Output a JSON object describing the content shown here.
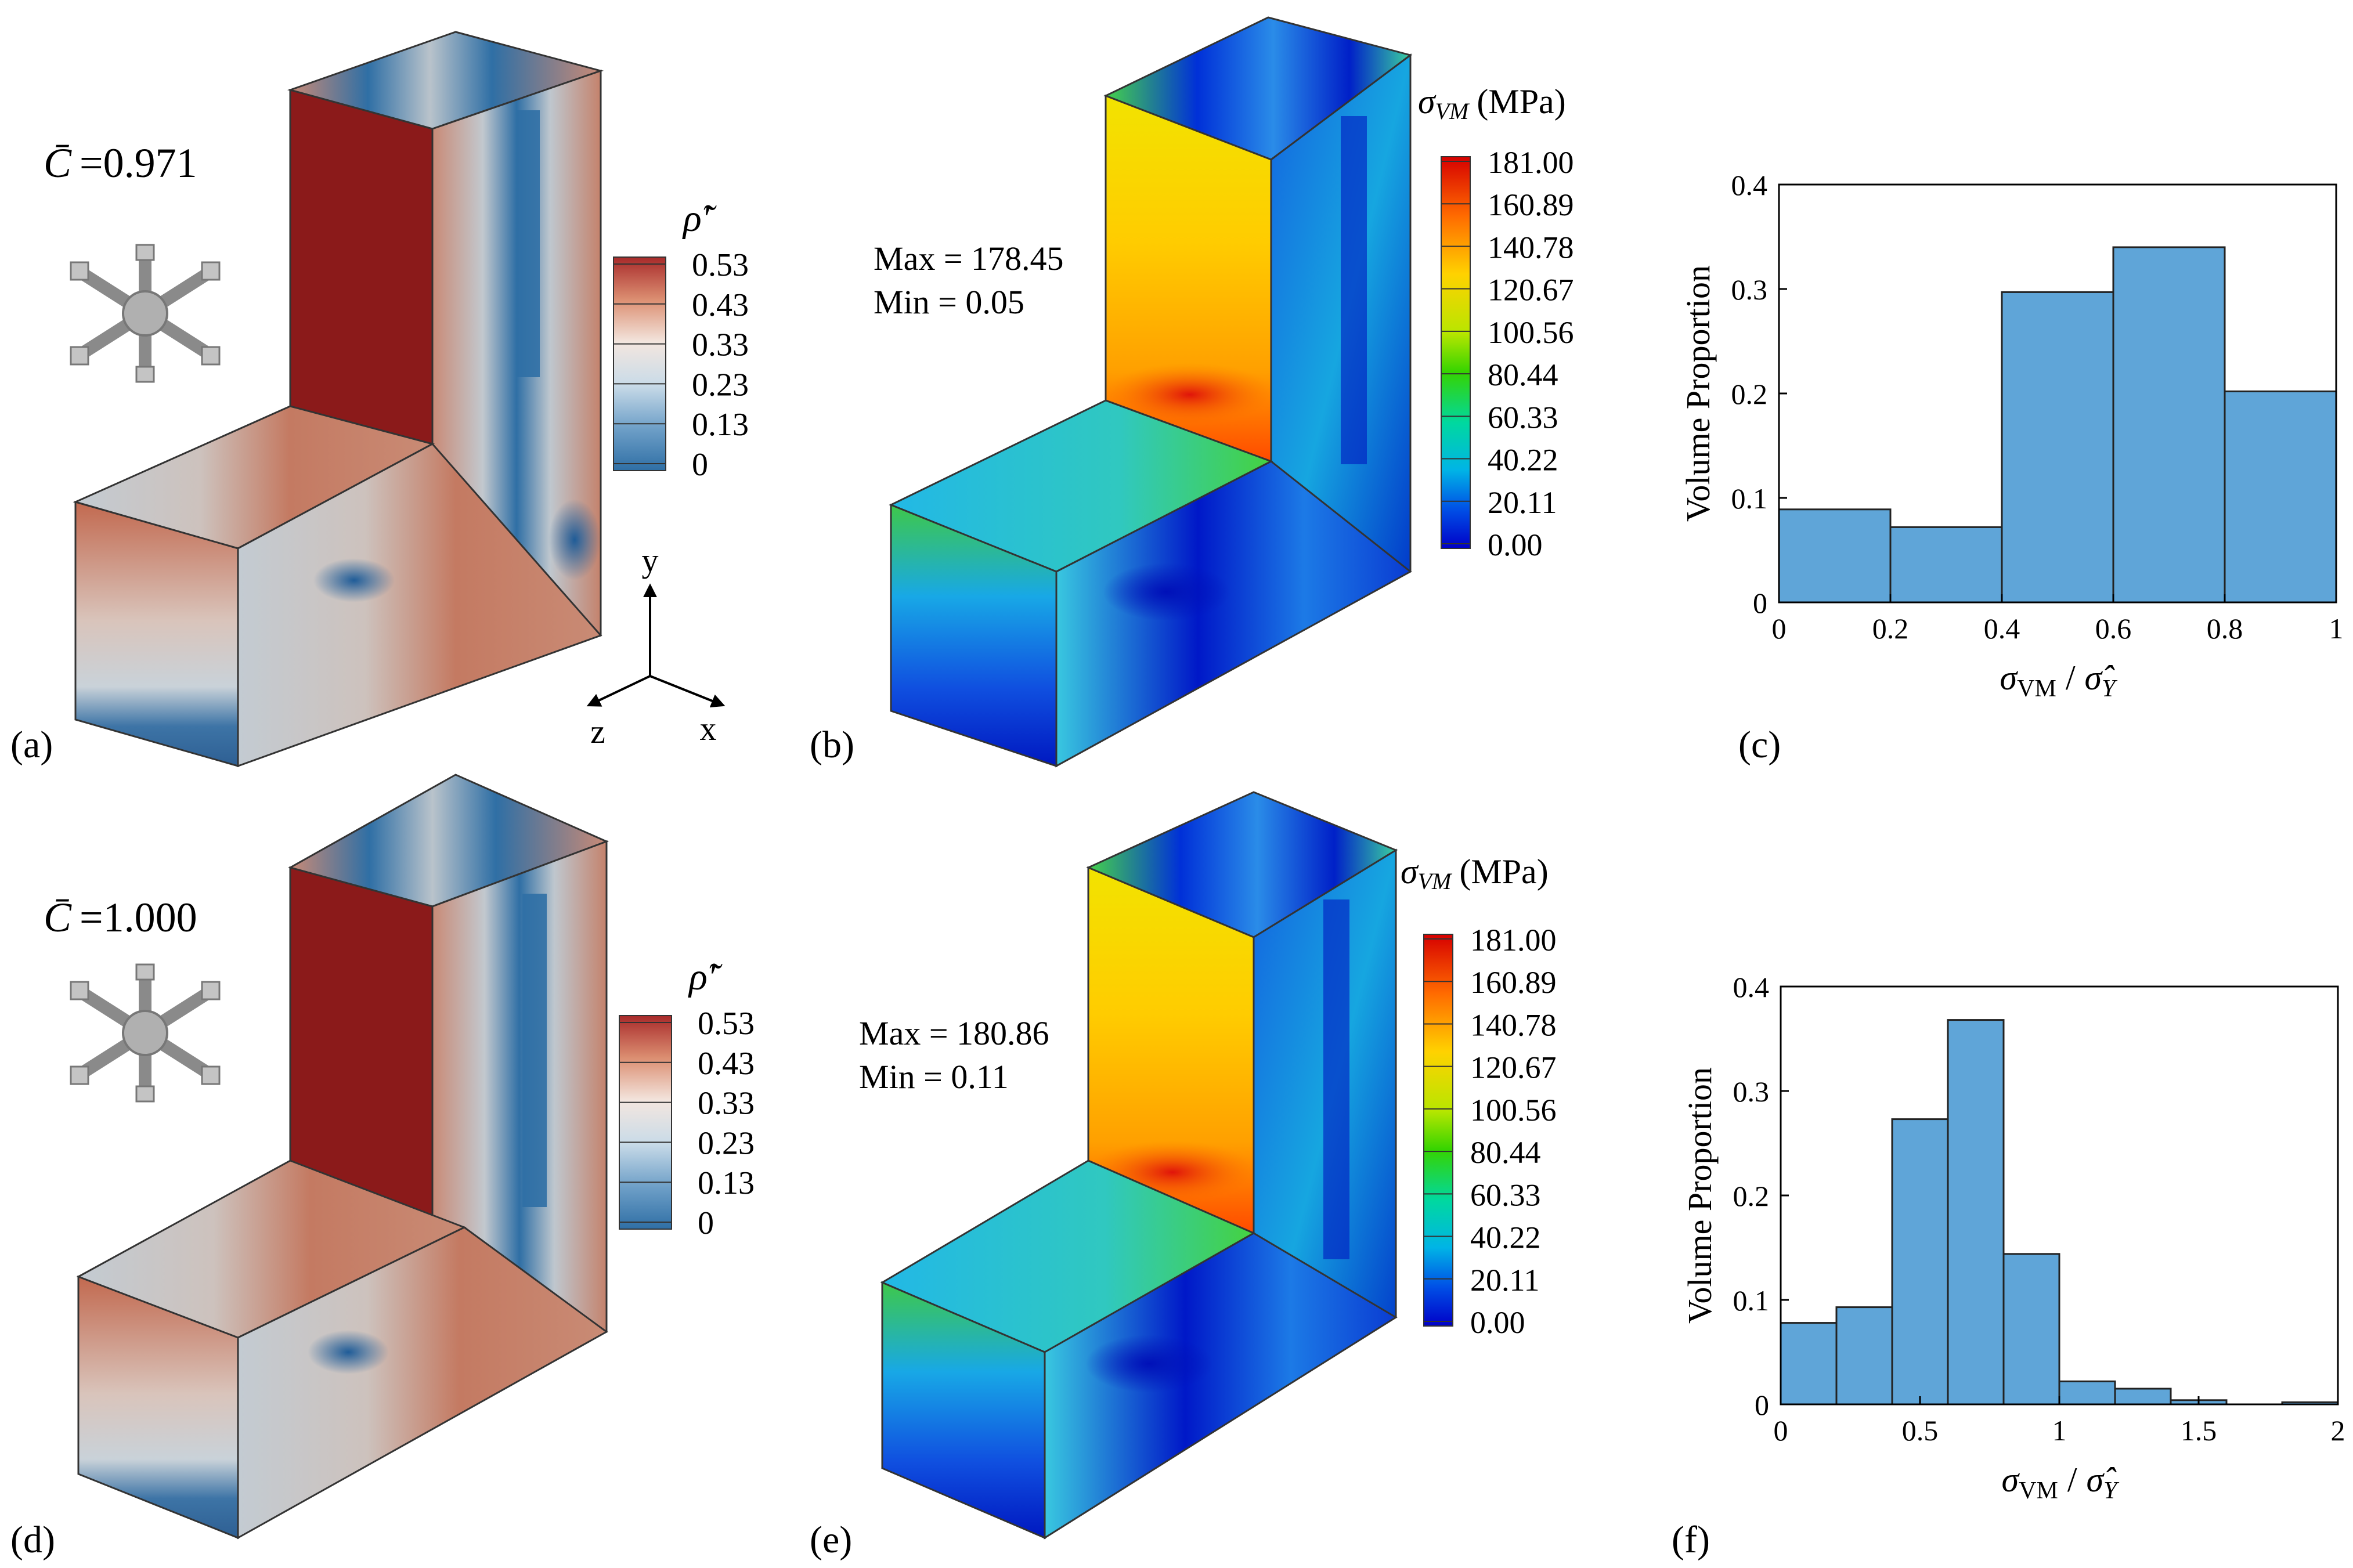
{
  "figure": {
    "panel_labels": [
      "(a)",
      "(b)",
      "(c)",
      "(d)",
      "(e)",
      "(f)"
    ],
    "rows": [
      {
        "cbar_value": "=0.971",
        "density_legend": {
          "title": "ρ̃′",
          "ticks": [
            "0.53",
            "0.43",
            "0.33",
            "0.23",
            "0.13",
            "0"
          ]
        },
        "stress_annot": {
          "max": "Max = 178.45",
          "min": "Min = 0.05"
        },
        "stress_legend": {
          "title_symbol": "σ",
          "title_sub": "VM",
          "title_unit": "(MPa)",
          "ticks": [
            "181.00",
            "160.89",
            "140.78",
            "120.67",
            "100.56",
            "80.44",
            "60.33",
            "40.22",
            "20.11",
            "0.00"
          ]
        }
      },
      {
        "cbar_value": "=1.000",
        "density_legend": {
          "title": "ρ̃′",
          "ticks": [
            "0.53",
            "0.43",
            "0.33",
            "0.23",
            "0.13",
            "0"
          ]
        },
        "stress_annot": {
          "max": "Max = 180.86",
          "min": "Min = 0.11"
        },
        "stress_legend": {
          "title_symbol": "σ",
          "title_sub": "VM",
          "title_unit": "(MPa)",
          "ticks": [
            "181.00",
            "160.89",
            "140.78",
            "120.67",
            "100.56",
            "80.44",
            "60.33",
            "40.22",
            "20.11",
            "0.00"
          ]
        }
      }
    ],
    "cbar_symbol": "C̄",
    "axes_triad": {
      "y": "y",
      "z": "z",
      "x": "x"
    },
    "hist_ylabel": "Volume Proportion",
    "hist_xlabel": {
      "sym": "σ",
      "sub": "VM",
      "sep": "/",
      "den": "σ̂",
      "den_sub": "Y"
    },
    "colors": {
      "density_high": "#8b1a1a",
      "density_low": "#2f6fa5",
      "jet_high": "#d60000",
      "jet_low": "#0000c8",
      "bar_fill": "#5fa5d8"
    }
  },
  "chart_data": [
    {
      "panel": "(c)",
      "type": "bar",
      "xlim": [
        0,
        1
      ],
      "ylim": [
        0,
        0.4
      ],
      "xticks": [
        "0",
        "0.2",
        "0.4",
        "0.6",
        "0.8",
        "1"
      ],
      "yticks": [
        "0",
        "0.1",
        "0.2",
        "0.3",
        "0.4"
      ],
      "xlabel": "σVM / σ̂Y",
      "ylabel": "Volume Proportion",
      "bin_edges": [
        0,
        0.2,
        0.4,
        0.6,
        0.8,
        1.0
      ],
      "values": [
        0.089,
        0.072,
        0.297,
        0.34,
        0.202
      ]
    },
    {
      "panel": "(f)",
      "type": "bar",
      "xlim": [
        0,
        2
      ],
      "ylim": [
        0,
        0.4
      ],
      "xticks": [
        "0",
        "0.5",
        "1",
        "1.5",
        "2"
      ],
      "yticks": [
        "0",
        "0.1",
        "0.2",
        "0.3",
        "0.4"
      ],
      "xlabel": "σVM / σ̂Y",
      "ylabel": "Volume Proportion",
      "bin_edges": [
        0,
        0.2,
        0.4,
        0.6,
        0.8,
        1.0,
        1.2,
        1.4,
        1.6,
        1.8,
        2.0
      ],
      "values": [
        0.078,
        0.093,
        0.273,
        0.368,
        0.144,
        0.022,
        0.015,
        0.004,
        0.0,
        0.002
      ]
    }
  ]
}
